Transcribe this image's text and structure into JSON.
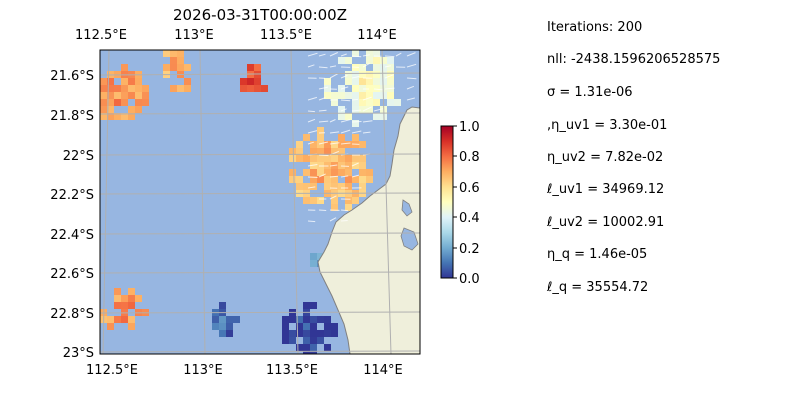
{
  "map": {
    "title": "2026-03-31T00:00:00Z",
    "lon_ticks": [
      "112.5°E",
      "113°E",
      "113.5°E",
      "114°E"
    ],
    "lat_ticks": [
      "21.6°S",
      "21.8°S",
      "22°S",
      "22.2°S",
      "22.4°S",
      "22.6°S",
      "22.8°S",
      "23°S"
    ],
    "ocean_color": "#97b6e1",
    "land_color": "#efefdb",
    "coast_color": "#808080",
    "grid_color": "#b0b0b0",
    "colormap": "RdYlBu_r"
  },
  "colorbar": {
    "ticks": [
      "0.0",
      "0.2",
      "0.4",
      "0.6",
      "0.8",
      "1.0"
    ],
    "range": [
      0.0,
      1.0
    ]
  },
  "stats": [
    "Iterations: 200",
    "nll: -2438.1596206528575",
    "σ = 1.31e-06",
    ",η_uv1 = 3.30e-01",
    "η_uv2 = 7.82e-02",
    "ℓ_uv1 = 34969.12",
    "ℓ_uv2 = 10002.91",
    "η_q = 1.46e-05",
    "ℓ_q = 35554.72"
  ]
}
